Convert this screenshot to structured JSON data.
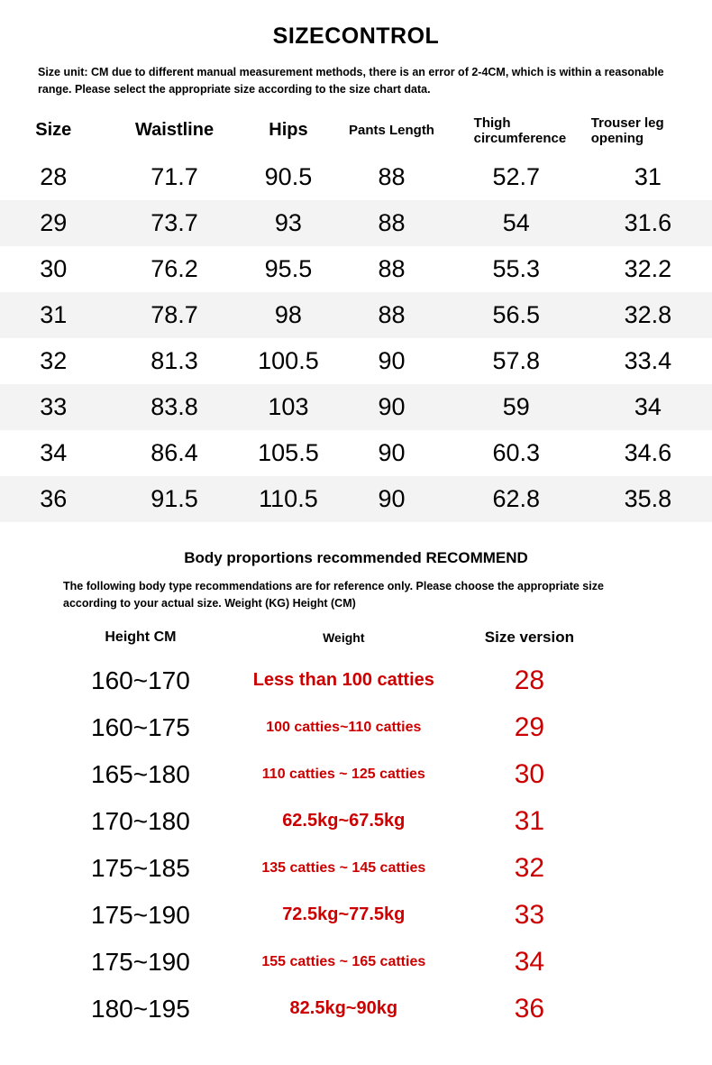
{
  "page": {
    "title": "SIZECONTROL",
    "size_note": "Size unit: CM due to different manual measurement methods, there is an error of 2-4CM, which is within a reasonable range. Please select the appropriate size according to the size chart data.",
    "recommend_title": "Body proportions recommended RECOMMEND",
    "recommend_note": "The following body type recommendations are for reference only. Please choose the appropriate size according to your actual size. Weight (KG) Height (CM)"
  },
  "size_table": {
    "headers": [
      "Size",
      "Waistline",
      "Hips",
      "Pants Length",
      "Thigh circumference",
      "Trouser leg opening"
    ],
    "rows": [
      [
        "28",
        "71.7",
        "90.5",
        "88",
        "52.7",
        "31"
      ],
      [
        "29",
        "73.7",
        "93",
        "88",
        "54",
        "31.6"
      ],
      [
        "30",
        "76.2",
        "95.5",
        "88",
        "55.3",
        "32.2"
      ],
      [
        "31",
        "78.7",
        "98",
        "88",
        "56.5",
        "32.8"
      ],
      [
        "32",
        "81.3",
        "100.5",
        "90",
        "57.8",
        "33.4"
      ],
      [
        "33",
        "83.8",
        "103",
        "90",
        "59",
        "34"
      ],
      [
        "34",
        "86.4",
        "105.5",
        "90",
        "60.3",
        "34.6"
      ],
      [
        "36",
        "91.5",
        "110.5",
        "90",
        "62.8",
        "35.8"
      ]
    ]
  },
  "recommend_table": {
    "headers": [
      "Height CM",
      "Weight",
      "Size version"
    ],
    "rows": [
      [
        "160~170",
        "Less than 100 catties",
        "28"
      ],
      [
        "160~175",
        "100 catties~110 catties",
        "29"
      ],
      [
        "165~180",
        "110 catties ~ 125 catties",
        "30"
      ],
      [
        "170~180",
        "62.5kg~67.5kg",
        "31"
      ],
      [
        "175~185",
        "135 catties ~ 145 catties",
        "32"
      ],
      [
        "175~190",
        "72.5kg~77.5kg",
        "33"
      ],
      [
        "175~190",
        "155 catties ~ 165 catties",
        "34"
      ],
      [
        "180~195",
        "82.5kg~90kg",
        "36"
      ]
    ]
  },
  "colors": {
    "red": "#cc0000",
    "row_alt": "#f3f3f3"
  }
}
